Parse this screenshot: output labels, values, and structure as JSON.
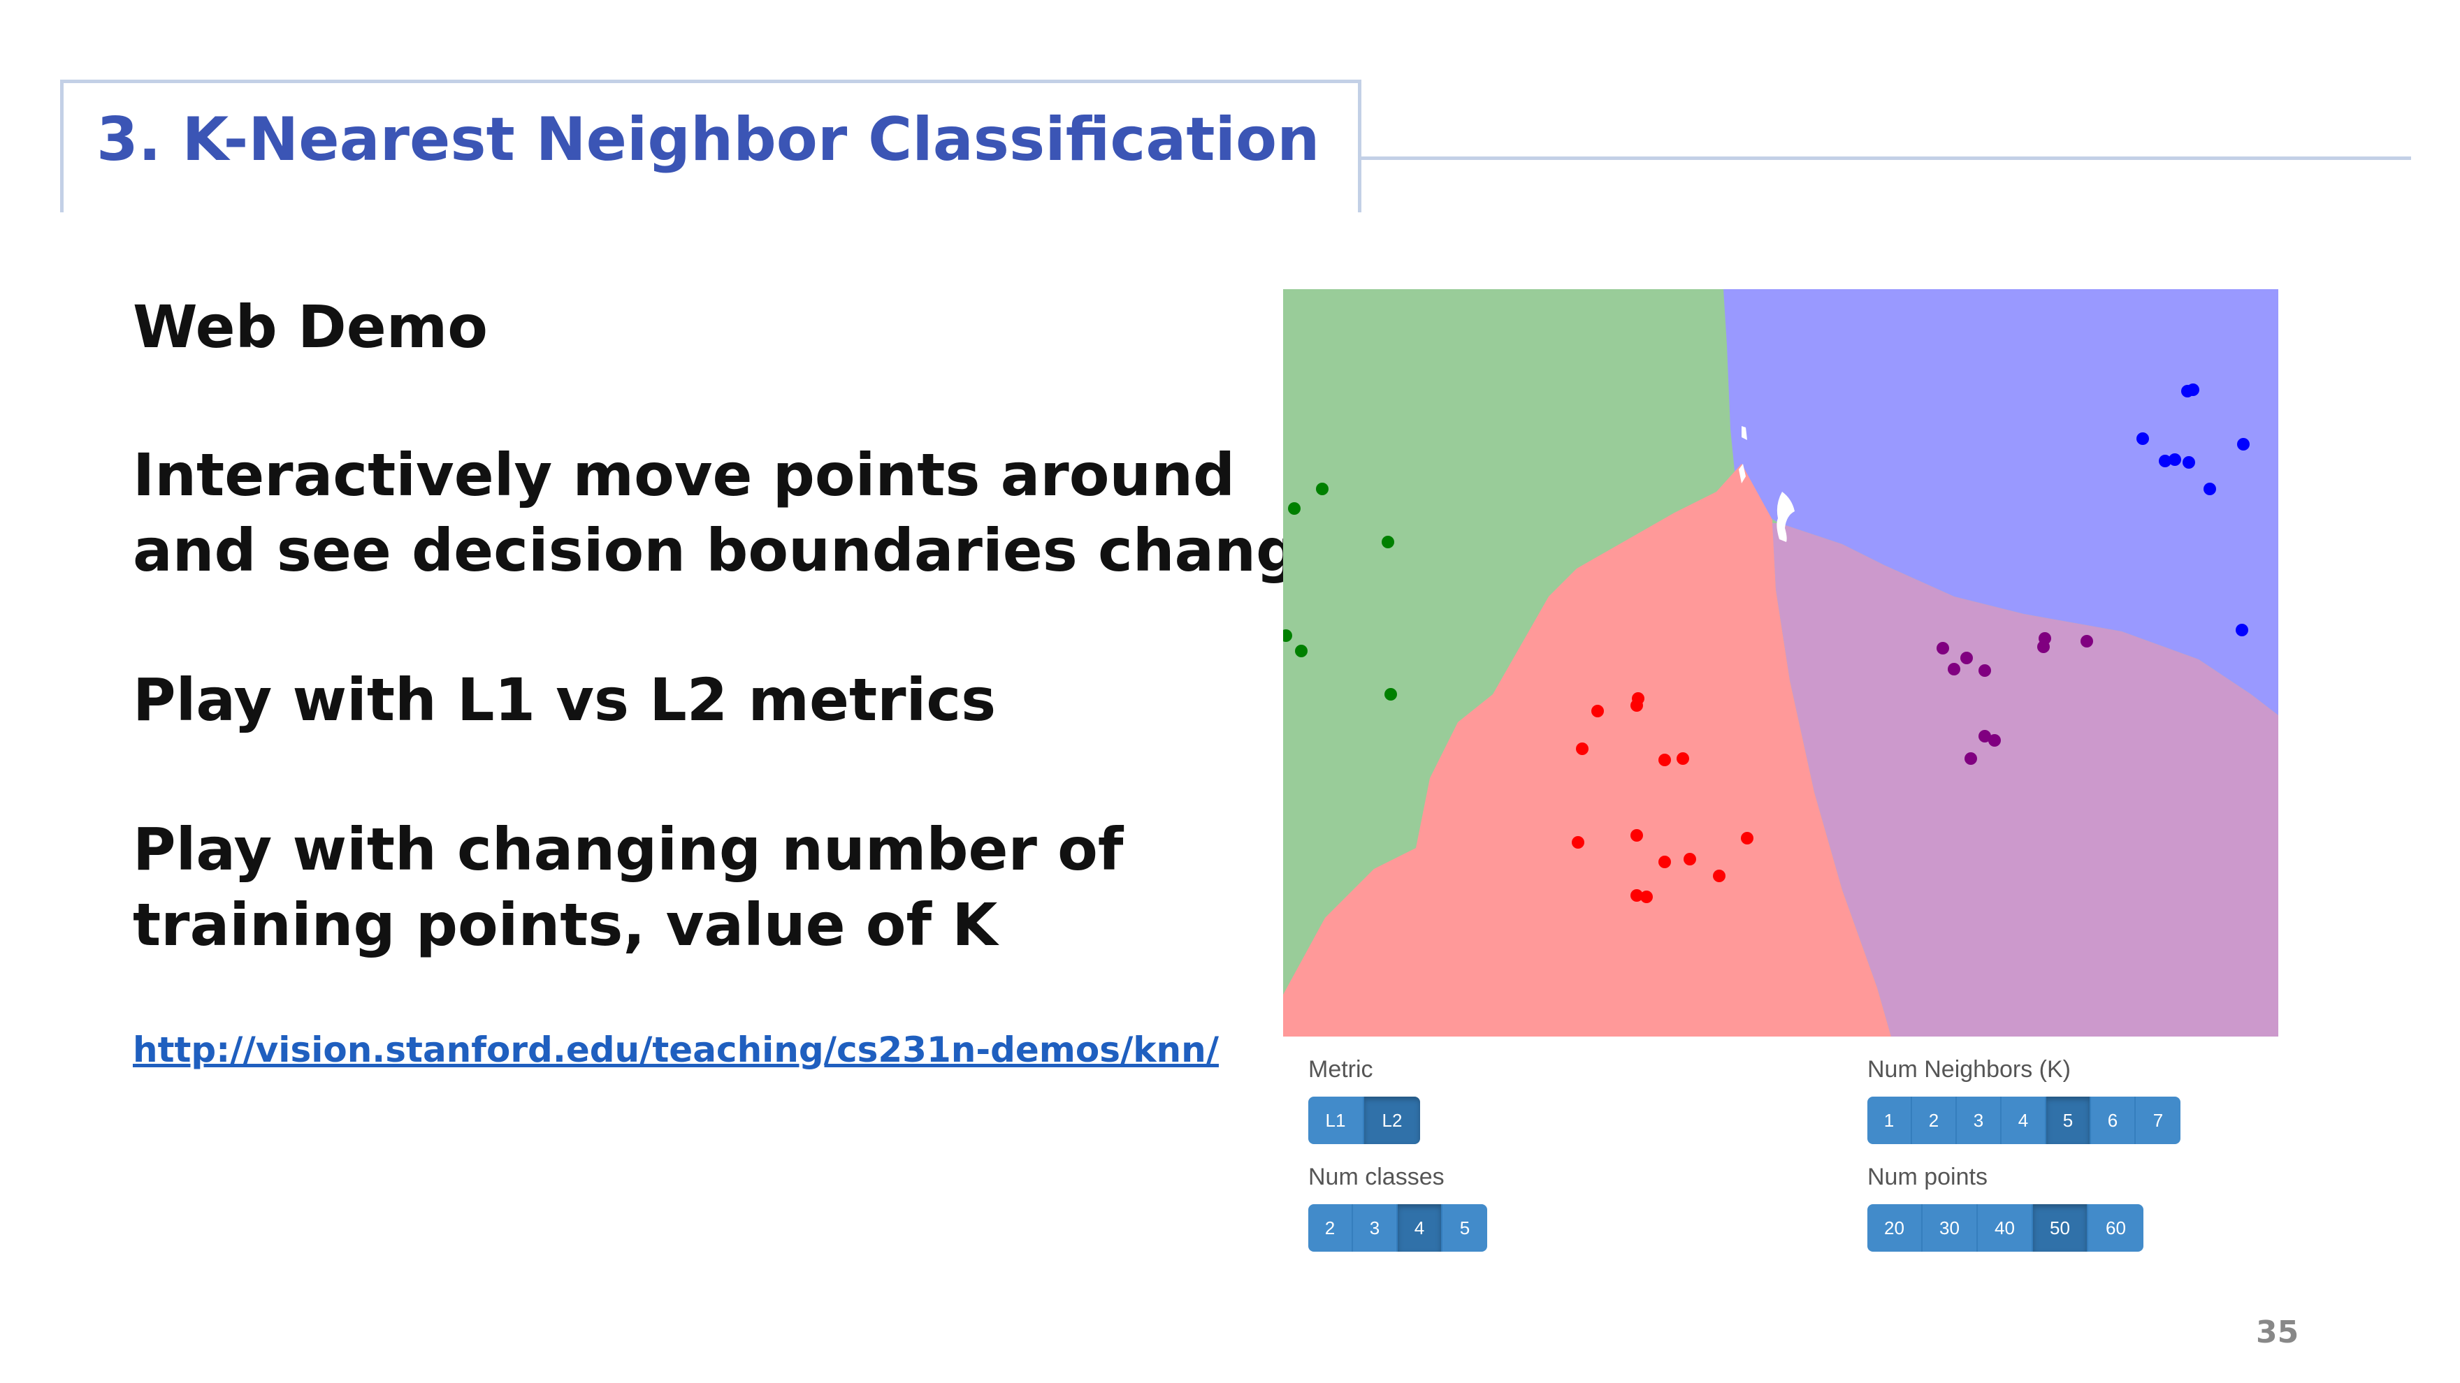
{
  "slide": {
    "title": "3. K-Nearest Neighbor Classification",
    "bullets": [
      "Web Demo",
      "Interactively move points around",
      "and see decision boundaries change",
      "Play with L1 vs L2 metrics",
      "Play with changing number of",
      "training points, value of K"
    ],
    "link": "http://vision.stanford.edu/teaching/cs231n-demos/knn/",
    "page_number": "35"
  },
  "demo": {
    "colors": {
      "green": "#99cc99",
      "blue": "#9999ff",
      "red": "#ff9999",
      "purple": "#cc99cc",
      "dot_green": "#008000",
      "dot_blue": "#0000ff",
      "dot_red": "#ff0000",
      "dot_purple": "#800080"
    },
    "metric": {
      "label": "Metric",
      "options": [
        "L1",
        "L2"
      ],
      "selected": "L2"
    },
    "num_neighbors": {
      "label": "Num Neighbors (K)",
      "options": [
        "1",
        "2",
        "3",
        "4",
        "5",
        "6",
        "7"
      ],
      "selected": "5"
    },
    "num_classes": {
      "label": "Num classes",
      "options": [
        "2",
        "3",
        "4",
        "5"
      ],
      "selected": "4"
    },
    "num_points": {
      "label": "Num points",
      "options": [
        "20",
        "30",
        "40",
        "50",
        "60"
      ],
      "selected": "50"
    }
  }
}
